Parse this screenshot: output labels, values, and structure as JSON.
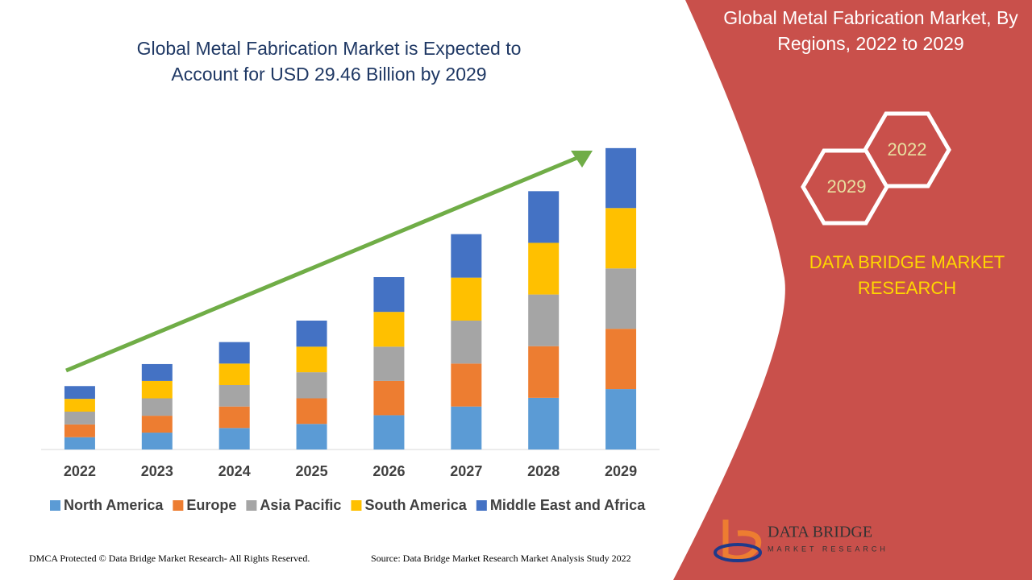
{
  "chart_data": {
    "type": "stacked_bar",
    "title": "Global Metal Fabrication Market is Expected to Account for USD 29.46 Billion by 2029",
    "categories": [
      "2022",
      "2023",
      "2024",
      "2025",
      "2026",
      "2027",
      "2028",
      "2029"
    ],
    "series": [
      {
        "name": "North America",
        "color": "#5b9bd5",
        "values": [
          1.2,
          1.65,
          2.1,
          2.5,
          3.35,
          4.2,
          5.05,
          5.9
        ]
      },
      {
        "name": "Europe",
        "color": "#ed7d31",
        "values": [
          1.25,
          1.65,
          2.1,
          2.5,
          3.35,
          4.2,
          5.05,
          5.9
        ]
      },
      {
        "name": "Asia Pacific",
        "color": "#a5a5a5",
        "values": [
          1.25,
          1.7,
          2.1,
          2.55,
          3.35,
          4.2,
          5.05,
          5.9
        ]
      },
      {
        "name": "South America",
        "color": "#ffc000",
        "values": [
          1.25,
          1.7,
          2.1,
          2.5,
          3.4,
          4.2,
          5.05,
          5.9
        ]
      },
      {
        "name": "Middle East and Africa",
        "color": "#4472c4",
        "values": [
          1.25,
          1.65,
          2.1,
          2.55,
          3.4,
          4.25,
          5.05,
          5.86
        ]
      }
    ],
    "ylim": [
      0,
      30
    ],
    "legend": "bottom"
  },
  "side_panel": {
    "title": "Global Metal Fabrication Market, By Regions, 2022 to 2029",
    "hexagons": [
      "2022",
      "2029"
    ],
    "brand": "DATA BRIDGE MARKET RESEARCH",
    "logo": {
      "name": "DATA BRIDGE",
      "tagline": "MARKET RESEARCH"
    }
  },
  "footer": {
    "left": "DMCA Protected © Data Bridge Market Research- All Rights Reserved.",
    "right": "Source: Data Bridge Market Research Market Analysis Study 2022"
  }
}
